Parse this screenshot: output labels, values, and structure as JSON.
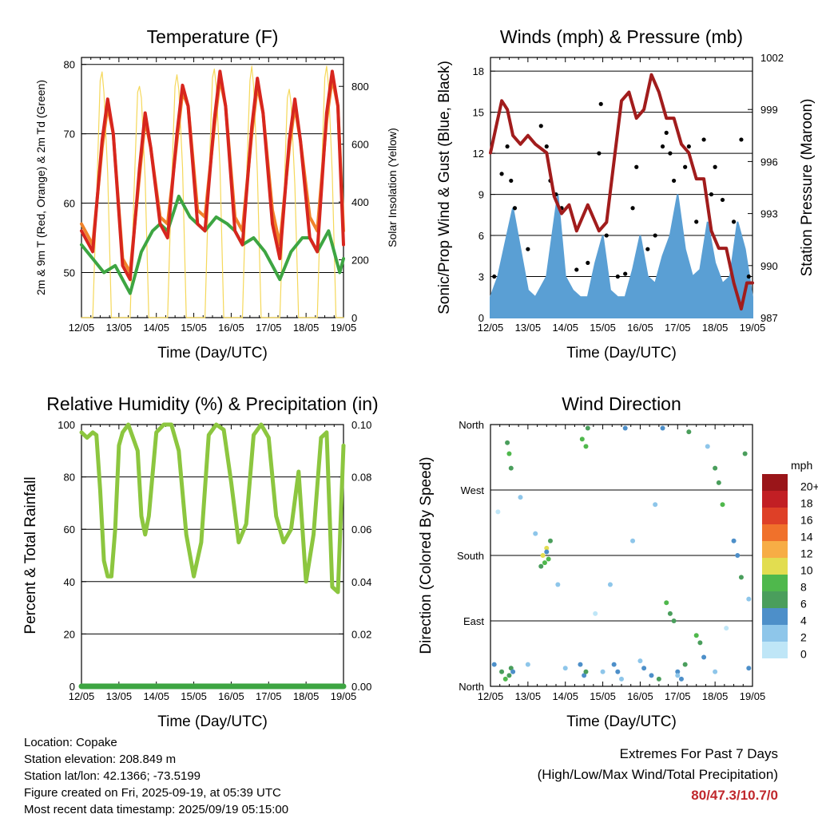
{
  "days": [
    "12/05",
    "13/05",
    "14/05",
    "15/05",
    "16/05",
    "17/05",
    "18/05",
    "19/05"
  ],
  "panels": {
    "temperature": {
      "title": "Temperature (F)",
      "xlabel": "Time (Day/UTC)",
      "ylabel_left": "2m & 9m T (Red, Orange) & 2m Td (Green)",
      "ylabel_right": "Solar Insolation (Yellow)",
      "yticks_left": [
        "50",
        "60",
        "70",
        "80"
      ],
      "yticks_right": [
        "0",
        "200",
        "400",
        "600",
        "800"
      ]
    },
    "winds": {
      "title": "Winds (mph) & Pressure (mb)",
      "xlabel": "Time (Day/UTC)",
      "ylabel_left": "Sonic/Prop Wind & Gust (Blue, Black)",
      "ylabel_right": "Station Pressure (Maroon)",
      "yticks_left": [
        "0",
        "3",
        "6",
        "9",
        "12",
        "15",
        "18"
      ],
      "yticks_right": [
        "987",
        "990",
        "993",
        "996",
        "999",
        "1002"
      ]
    },
    "humidity": {
      "title": "Relative Humidity (%) & Precipitation (in)",
      "xlabel": "Time (Day/UTC)",
      "ylabel_left": "Percent & Total Rainfall",
      "yticks_left": [
        "0",
        "20",
        "40",
        "60",
        "80",
        "100"
      ],
      "yticks_right": [
        "0.00",
        "0.02",
        "0.04",
        "0.06",
        "0.08",
        "0.10"
      ]
    },
    "direction": {
      "title": "Wind Direction",
      "xlabel": "Time (Day/UTC)",
      "ylabel_left": "Direction (Colored By Speed)",
      "yticks_left": [
        "North",
        "East",
        "South",
        "West",
        "North"
      ],
      "legend_unit": "mph",
      "legend_labels": [
        "0",
        "2",
        "4",
        "6",
        "8",
        "10",
        "12",
        "14",
        "16",
        "18",
        "20+"
      ],
      "legend_colors": [
        "#bfe6f7",
        "#8ec6ea",
        "#4d8fc9",
        "#4a9e5c",
        "#4fb84c",
        "#e2dd50",
        "#f7ad45",
        "#f0712b",
        "#de4027",
        "#c21f24",
        "#9a1519"
      ]
    }
  },
  "info": {
    "location": "Location: Copake",
    "elevation": "Station elevation: 208.849 m",
    "latlon": "Station lat/lon: 42.1366; -73.5199",
    "created": "Figure created on Fri, 2025-09-19, at 05:39 UTC",
    "timestamp": "Most recent data timestamp: 2025/09/19 05:15:00"
  },
  "extremes": {
    "line1": "Extremes For Past 7 Days",
    "line2": "(High/Low/Max Wind/Total Precipitation)",
    "values": "80/47.3/10.7/0"
  },
  "chart_data": [
    {
      "type": "line",
      "title": "Temperature (F)",
      "xlabel": "Time (Day/UTC)",
      "ylabel": "2m & 9m T (Red, Orange) & 2m Td (Green)",
      "y2label": "Solar Insolation (Yellow)",
      "x_unit": "days since 12/05 00 UTC",
      "ylim": [
        43.5,
        81
      ],
      "y2lim": [
        0,
        900
      ],
      "series": [
        {
          "name": "2m T",
          "color": "#d7261e",
          "x": [
            0,
            0.3,
            0.55,
            0.7,
            0.85,
            1.1,
            1.3,
            1.55,
            1.7,
            1.85,
            2.1,
            2.3,
            2.55,
            2.7,
            2.85,
            3.1,
            3.3,
            3.55,
            3.7,
            3.85,
            4.1,
            4.3,
            4.55,
            4.7,
            4.85,
            5.1,
            5.3,
            5.55,
            5.7,
            5.85,
            6.1,
            6.3,
            6.55,
            6.7,
            6.85,
            7.0
          ],
          "y": [
            56,
            53,
            69,
            75,
            70,
            51,
            49,
            65,
            73,
            68,
            57,
            55,
            70,
            77,
            74,
            57,
            56,
            72,
            79,
            74,
            56,
            54,
            71,
            78,
            73,
            57,
            52,
            69,
            75,
            69,
            55,
            53,
            73,
            79,
            74,
            54
          ]
        },
        {
          "name": "9m T",
          "color": "#f0822a",
          "x": [
            0,
            0.3,
            0.55,
            0.7,
            0.85,
            1.1,
            1.3,
            1.55,
            1.7,
            1.85,
            2.1,
            2.3,
            2.55,
            2.7,
            2.85,
            3.1,
            3.3,
            3.55,
            3.7,
            3.85,
            4.1,
            4.3,
            4.55,
            4.7,
            4.85,
            5.1,
            5.3,
            5.55,
            5.7,
            5.85,
            6.1,
            6.3,
            6.55,
            6.7,
            6.85,
            7.0
          ],
          "y": [
            57,
            54,
            68,
            74,
            70,
            52,
            50,
            64,
            72,
            68,
            58,
            57,
            69,
            76,
            74,
            59,
            58,
            71,
            78,
            74,
            58,
            56,
            70,
            77,
            73,
            59,
            54,
            68,
            74,
            69,
            58,
            56,
            72,
            78,
            74,
            56
          ]
        },
        {
          "name": "2m Td",
          "color": "#3da542",
          "x": [
            0,
            0.3,
            0.6,
            0.9,
            1.1,
            1.3,
            1.6,
            1.9,
            2.1,
            2.3,
            2.6,
            2.9,
            3.1,
            3.3,
            3.6,
            3.9,
            4.1,
            4.3,
            4.6,
            4.9,
            5.1,
            5.3,
            5.6,
            5.9,
            6.1,
            6.3,
            6.6,
            6.9,
            7.0
          ],
          "y": [
            54,
            52,
            50,
            51,
            49,
            47,
            53,
            56,
            57,
            56,
            61,
            58,
            57,
            56,
            58,
            57,
            56,
            54,
            55,
            53,
            51,
            49,
            53,
            55,
            55,
            53,
            56,
            50,
            52
          ]
        },
        {
          "name": "Solar Insolation",
          "color": "#f5d85a",
          "axis": "right",
          "x": [
            0,
            0.3,
            0.4,
            0.5,
            0.55,
            0.6,
            0.7,
            0.8,
            1.3,
            1.4,
            1.5,
            1.55,
            1.6,
            1.7,
            1.8,
            2.3,
            2.4,
            2.5,
            2.55,
            2.6,
            2.7,
            2.8,
            3.3,
            3.4,
            3.5,
            3.55,
            3.6,
            3.7,
            3.8,
            4.3,
            4.4,
            4.5,
            4.55,
            4.6,
            4.7,
            4.8,
            5.3,
            5.4,
            5.5,
            5.55,
            5.6,
            5.7,
            5.8,
            6.3,
            6.4,
            6.5,
            6.55,
            6.6,
            6.7,
            6.8,
            7.0
          ],
          "y": [
            0,
            0,
            400,
            820,
            850,
            780,
            500,
            0,
            0,
            420,
            780,
            800,
            760,
            480,
            0,
            0,
            440,
            800,
            840,
            790,
            520,
            0,
            0,
            460,
            830,
            860,
            800,
            520,
            0,
            0,
            450,
            820,
            870,
            800,
            500,
            0,
            0,
            380,
            760,
            790,
            740,
            460,
            0,
            0,
            450,
            830,
            870,
            800,
            500,
            0,
            0
          ]
        }
      ]
    },
    {
      "type": "line",
      "title": "Winds (mph) & Pressure (mb)",
      "xlabel": "Time (Day/UTC)",
      "ylabel": "Sonic/Prop Wind & Gust (Blue, Black)",
      "y2label": "Station Pressure (Maroon)",
      "x_unit": "days since 12/05 00 UTC",
      "ylim": [
        0,
        19
      ],
      "y2lim": [
        987,
        1002
      ],
      "series": [
        {
          "name": "Station Pressure",
          "color": "#a11c1c",
          "axis": "right",
          "x": [
            0,
            0.15,
            0.3,
            0.45,
            0.6,
            0.8,
            1.0,
            1.2,
            1.5,
            1.7,
            1.9,
            2.1,
            2.3,
            2.6,
            2.9,
            3.1,
            3.3,
            3.5,
            3.7,
            3.9,
            4.1,
            4.3,
            4.5,
            4.7,
            4.9,
            5.1,
            5.3,
            5.5,
            5.7,
            5.9,
            6.1,
            6.3,
            6.5,
            6.7,
            6.85,
            7.0
          ],
          "y": [
            996.5,
            998,
            999.5,
            999,
            997.5,
            997,
            997.5,
            997,
            996.5,
            994,
            993,
            993.5,
            992,
            993.5,
            992,
            992.5,
            996,
            999.5,
            1000,
            998.5,
            999,
            1001,
            1000,
            998.5,
            998.5,
            997,
            996.5,
            995,
            995,
            992,
            991,
            991,
            989,
            987.5,
            989,
            989
          ]
        },
        {
          "name": "Sonic/Prop Wind",
          "color": "#5a9fd4",
          "x": [
            0,
            0.2,
            0.4,
            0.6,
            0.8,
            1.0,
            1.2,
            1.5,
            1.8,
            2.0,
            2.2,
            2.4,
            2.6,
            2.8,
            3.0,
            3.2,
            3.4,
            3.6,
            3.8,
            4.0,
            4.2,
            4.4,
            4.6,
            4.8,
            5.0,
            5.2,
            5.4,
            5.6,
            5.8,
            6.0,
            6.2,
            6.4,
            6.6,
            6.8,
            7.0
          ],
          "y": [
            1.5,
            3,
            5.5,
            8,
            5,
            2,
            1.5,
            3,
            9,
            3,
            2,
            1.5,
            1.5,
            4,
            6,
            2,
            1.5,
            1.5,
            3.5,
            6,
            3,
            2.5,
            4.5,
            6,
            9,
            5,
            3,
            3.5,
            7,
            4,
            2.5,
            3,
            7,
            5,
            1.5
          ]
        },
        {
          "name": "Gust",
          "color": "#000000",
          "mode": "markers",
          "x": [
            0.1,
            0.3,
            0.45,
            0.55,
            0.65,
            1.0,
            1.35,
            1.5,
            1.6,
            1.75,
            1.9,
            2.3,
            2.6,
            2.9,
            2.95,
            3.1,
            3.4,
            3.6,
            3.8,
            3.9,
            4.2,
            4.4,
            4.6,
            4.7,
            4.8,
            4.9,
            5.2,
            5.3,
            5.5,
            5.7,
            5.9,
            6.0,
            6.2,
            6.5,
            6.7,
            6.9
          ],
          "y": [
            3,
            10.5,
            12.5,
            10,
            8,
            5,
            14,
            12.5,
            10,
            9,
            8,
            3.5,
            4,
            12,
            15.6,
            6,
            3,
            3.2,
            8,
            11,
            5,
            6,
            12.5,
            13.5,
            12,
            10,
            11,
            12.5,
            7,
            13,
            9,
            11,
            8.6,
            7,
            13,
            3
          ]
        }
      ]
    },
    {
      "type": "line",
      "title": "Relative Humidity (%) & Precipitation (in)",
      "xlabel": "Time (Day/UTC)",
      "ylabel": "Percent & Total Rainfall",
      "x_unit": "days since 12/05 00 UTC",
      "ylim": [
        0,
        100
      ],
      "y2lim": [
        0,
        0.1
      ],
      "series": [
        {
          "name": "Relative Humidity",
          "color": "#8cc63f",
          "x": [
            0,
            0.15,
            0.3,
            0.4,
            0.5,
            0.6,
            0.7,
            0.8,
            0.9,
            1.0,
            1.1,
            1.25,
            1.5,
            1.6,
            1.7,
            1.8,
            2.0,
            2.2,
            2.4,
            2.6,
            2.8,
            3.0,
            3.2,
            3.4,
            3.6,
            3.8,
            4.0,
            4.2,
            4.4,
            4.6,
            4.8,
            5.0,
            5.2,
            5.4,
            5.6,
            5.8,
            6.0,
            6.2,
            6.4,
            6.55,
            6.7,
            6.85,
            7.0
          ],
          "y": [
            97,
            95,
            97,
            96,
            75,
            48,
            42,
            42,
            60,
            92,
            97,
            100,
            90,
            65,
            58,
            65,
            97,
            100,
            100,
            90,
            58,
            42,
            55,
            96,
            100,
            98,
            78,
            55,
            62,
            96,
            100,
            95,
            65,
            55,
            60,
            82,
            40,
            58,
            95,
            97,
            38,
            36,
            92
          ]
        },
        {
          "name": "Total Rainfall",
          "color": "#3da542",
          "axis": "right",
          "x": [
            0,
            7.0
          ],
          "y": [
            0,
            0
          ]
        }
      ]
    },
    {
      "type": "scatter",
      "title": "Wind Direction",
      "xlabel": "Time (Day/UTC)",
      "ylabel": "Direction (Colored By Speed)",
      "x_unit": "days since 12/05 00 UTC",
      "y_unit": "degrees (0 = North, 90 = East, 180 = South, 270 = West, 360 = North)",
      "ylim": [
        0,
        360
      ],
      "legend": {
        "unit": "mph",
        "labels": [
          "0",
          "2",
          "4",
          "6",
          "8",
          "10",
          "12",
          "14",
          "16",
          "18",
          "20+"
        ]
      },
      "series": [
        {
          "name": "direction",
          "x": [
            0.1,
            0.3,
            0.4,
            0.5,
            0.55,
            0.6,
            0.45,
            0.5,
            0.55,
            1.4,
            1.45,
            1.5,
            1.55,
            1.6,
            1.35,
            1.5,
            2.4,
            2.5,
            2.55,
            2.6,
            2.45,
            2.55,
            3.3,
            3.4,
            3.5,
            3.6,
            3.2,
            4.1,
            4.3,
            4.5,
            4.6,
            4.7,
            4.8,
            4.9,
            5.0,
            5.1,
            5.2,
            5.3,
            5.5,
            5.6,
            5.7,
            6.0,
            6.1,
            6.2,
            6.5,
            6.6,
            6.7,
            6.8,
            6.9,
            1.0,
            2.0,
            3.0,
            4.0,
            5.0,
            6.0,
            0.2,
            0.8,
            1.2,
            1.8,
            2.8,
            3.8,
            4.4,
            5.8,
            6.3,
            6.9
          ],
          "y": [
            30,
            20,
            10,
            15,
            25,
            20,
            335,
            320,
            300,
            180,
            170,
            190,
            175,
            200,
            165,
            185,
            30,
            15,
            20,
            355,
            340,
            330,
            30,
            20,
            10,
            355,
            140,
            25,
            15,
            10,
            355,
            115,
            100,
            90,
            20,
            10,
            30,
            350,
            70,
            60,
            40,
            300,
            280,
            250,
            200,
            180,
            150,
            320,
            25,
            30,
            25,
            20,
            35,
            15,
            20,
            240,
            260,
            210,
            140,
            100,
            200,
            250,
            330,
            80,
            120
          ],
          "speed": [
            3,
            5,
            7,
            5,
            6,
            4,
            6,
            7,
            5,
            9,
            8,
            10,
            7,
            6,
            5,
            4,
            3,
            4,
            5,
            6,
            7,
            8,
            3,
            4,
            2,
            3,
            2,
            3,
            4,
            5,
            3,
            7,
            6,
            5,
            4,
            3,
            5,
            6,
            7,
            5,
            4,
            5,
            6,
            7,
            4,
            3,
            5,
            6,
            3,
            1,
            1,
            2,
            1,
            2,
            1,
            0,
            1,
            2,
            1,
            0,
            1,
            2,
            1,
            0,
            2
          ]
        }
      ]
    }
  ]
}
